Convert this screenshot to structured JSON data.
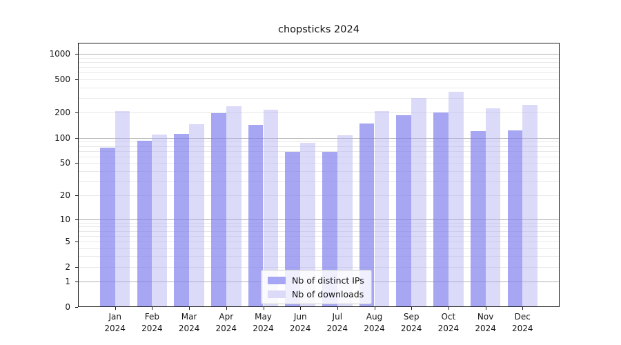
{
  "chart_data": {
    "type": "bar",
    "title": "chopsticks 2024",
    "categories": [
      "Jan",
      "Feb",
      "Mar",
      "Apr",
      "May",
      "Jun",
      "Jul",
      "Aug",
      "Sep",
      "Oct",
      "Nov",
      "Dec"
    ],
    "x_tick_year": "2024",
    "series": [
      {
        "name": "Nb of distinct IPs",
        "values": [
          77,
          92,
          111,
          196,
          143,
          68,
          68,
          150,
          186,
          203,
          120,
          124
        ],
        "fill": "rgba(128,128,236,0.70)",
        "legend_color": "#a6a6f4"
      },
      {
        "name": "Nb of downloads",
        "values": [
          209,
          109,
          147,
          241,
          219,
          88,
          107,
          209,
          297,
          358,
          226,
          248
        ],
        "fill": "rgba(175,175,242,0.45)",
        "legend_color": "#dbdbf9"
      }
    ],
    "yscale": "log1p",
    "y_ticks": [
      0,
      1,
      2,
      5,
      10,
      20,
      50,
      100,
      200,
      500,
      1000
    ],
    "y_major_grid": [
      1,
      10,
      100,
      1000
    ],
    "ylim": [
      0,
      1353
    ],
    "grid": "on",
    "grid_major_color": "#b0b0b0",
    "grid_minor_color": "#e8e8e8",
    "legend_position": "lower center"
  }
}
